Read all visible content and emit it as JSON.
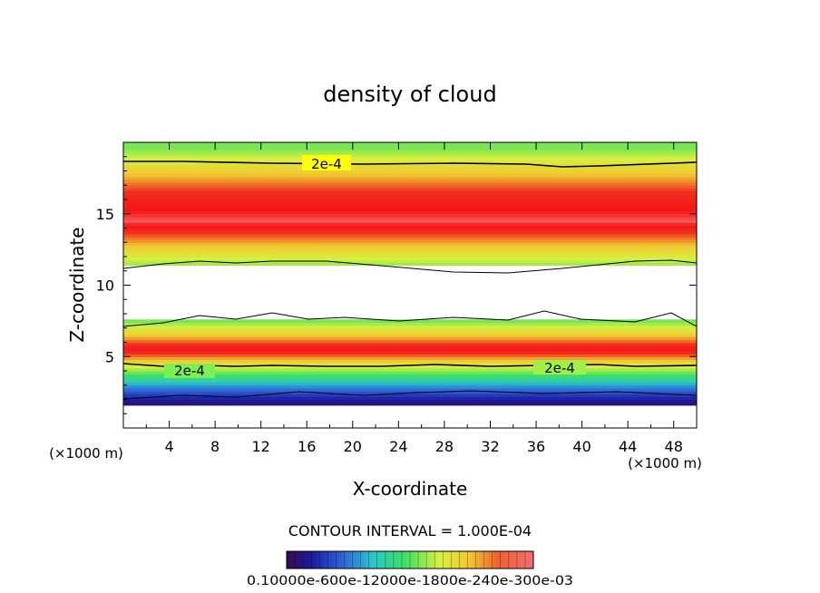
{
  "chart_data": {
    "type": "heatmap",
    "title": "density of cloud",
    "xlabel": "X-coordinate",
    "ylabel": "Z-coordinate",
    "x_unit_left": "(×1000 m)",
    "x_unit_right": "(×1000 m)",
    "xlim": [
      0,
      50
    ],
    "ylim": [
      0,
      20
    ],
    "xticks": [
      4,
      8,
      12,
      16,
      20,
      24,
      28,
      32,
      36,
      40,
      44,
      48
    ],
    "yticks": [
      5,
      10,
      15
    ],
    "contour_interval_label": "CONTOUR INTERVAL = 1.000E-04",
    "contour_labels": [
      "2e-4",
      "2e-4",
      "2e-4"
    ],
    "colorbar_labels": "0.10000e-600e-12000e-1800e-240e-300e-03",
    "vertical_profile": [
      {
        "z": 1.6,
        "value": 1e-05
      },
      {
        "z": 2.2,
        "value": 4e-05
      },
      {
        "z": 3.0,
        "value": 9e-05
      },
      {
        "z": 3.8,
        "value": 0.00015
      },
      {
        "z": 4.5,
        "value": 0.0002
      },
      {
        "z": 5.5,
        "value": 0.00028
      },
      {
        "z": 6.5,
        "value": 0.00022
      },
      {
        "z": 7.5,
        "value": 0.00016
      },
      {
        "z": 11.2,
        "value": 0.00016
      },
      {
        "z": 12.5,
        "value": 0.00021
      },
      {
        "z": 14.5,
        "value": 0.00029
      },
      {
        "z": 16.5,
        "value": 0.00026
      },
      {
        "z": 18.5,
        "value": 0.0002
      },
      {
        "z": 19.6,
        "value": 0.00016
      }
    ],
    "clear_band_z": [
      7.6,
      11.3
    ],
    "grid": false
  }
}
